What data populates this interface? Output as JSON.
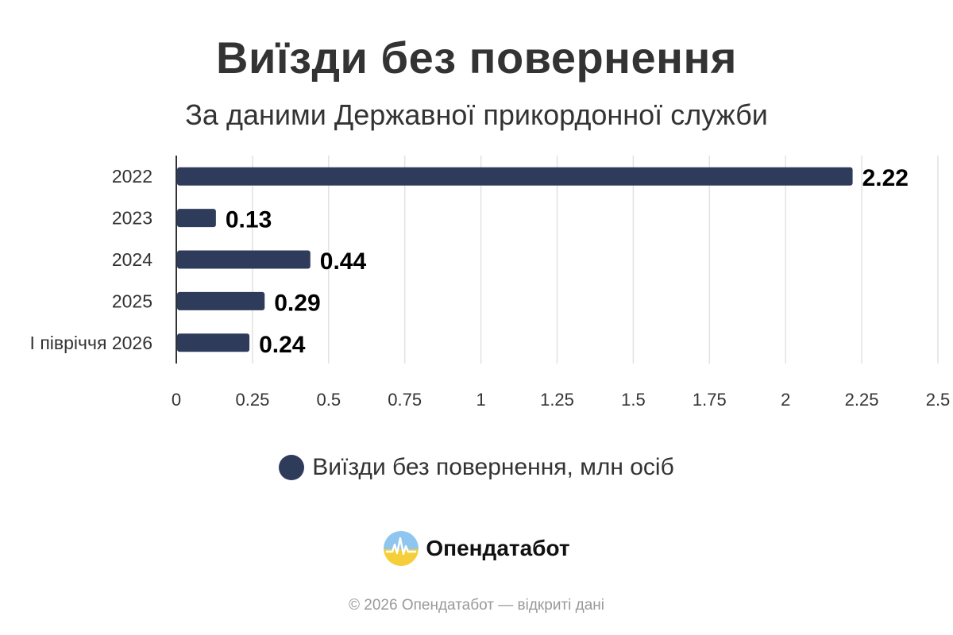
{
  "chart_data": {
    "type": "bar",
    "orientation": "horizontal",
    "title": "Виїзди без повернення",
    "subtitle": "За даними Державної прикордонної служби",
    "categories": [
      "2022",
      "2023",
      "2024",
      "2025",
      "I півріччя 2026"
    ],
    "series": [
      {
        "name": "Виїзди без повернення, млн осіб",
        "values": [
          2.22,
          0.13,
          0.44,
          0.29,
          0.24
        ],
        "color": "#2e3b5b"
      }
    ],
    "xlim": [
      0,
      2.5
    ],
    "xticks": [
      "0",
      "0.25",
      "0.5",
      "0.75",
      "1",
      "1.25",
      "1.5",
      "1.75",
      "2",
      "2.25",
      "2.5"
    ],
    "data_labels": [
      "2.22",
      "0.13",
      "0.44",
      "0.29",
      "0.24"
    ],
    "grid": true,
    "legend_position": "bottom"
  },
  "brand": {
    "name": "Опендатабот",
    "logo_icon": "opendatabot-logo-icon"
  },
  "footer": "© 2026 Опендатабот — відкриті дані"
}
